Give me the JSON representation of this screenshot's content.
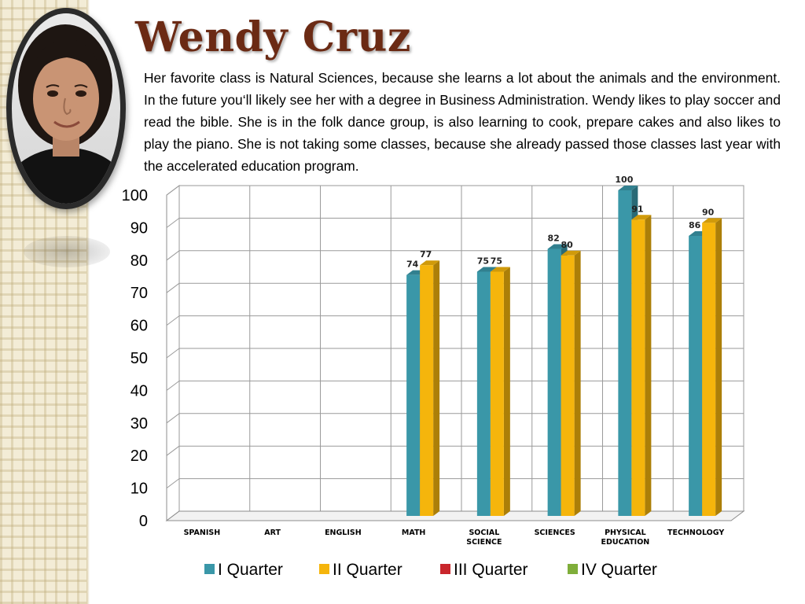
{
  "slide": {
    "title": "Wendy Cruz",
    "bio": "Her favorite class is Natural Sciences, because she learns a lot about the animals and the environment. In the future you‘ll likely see her with a degree in Business Administration. Wendy likes to play soccer and read the bible. She is in the folk dance group, is also learning to cook, prepare cakes and also likes to play the piano.   She is not taking  some classes, because she already passed those classes last year with the accelerated education  program."
  },
  "colors": {
    "title": "#6b2a14",
    "series": [
      "#3a97a8",
      "#f5b50c",
      "#c9262c",
      "#7fae3a"
    ]
  },
  "chart_data": {
    "type": "bar",
    "categories": [
      "SPANISH",
      "ART",
      "ENGLISH",
      "MATH",
      "SOCIAL SCIENCE",
      "SCIENCES",
      "PHYSICAL EDUCATION",
      "TECHNOLOGY"
    ],
    "series": [
      {
        "name": "I Quarter",
        "values": [
          null,
          null,
          null,
          74,
          75,
          82,
          100,
          86
        ]
      },
      {
        "name": "II Quarter",
        "values": [
          null,
          null,
          null,
          77,
          75,
          80,
          91,
          90
        ]
      },
      {
        "name": "III Quarter",
        "values": [
          null,
          null,
          null,
          null,
          null,
          null,
          null,
          null
        ]
      },
      {
        "name": "IV Quarter",
        "values": [
          null,
          null,
          null,
          null,
          null,
          null,
          null,
          null
        ]
      }
    ],
    "y_ticks": [
      "0",
      "10",
      "20",
      "30",
      "40",
      "50",
      "60",
      "70",
      "80",
      "90",
      "100"
    ],
    "ylim": [
      0,
      100
    ],
    "grid": true,
    "legend": "bottom",
    "style": "3d-column"
  }
}
